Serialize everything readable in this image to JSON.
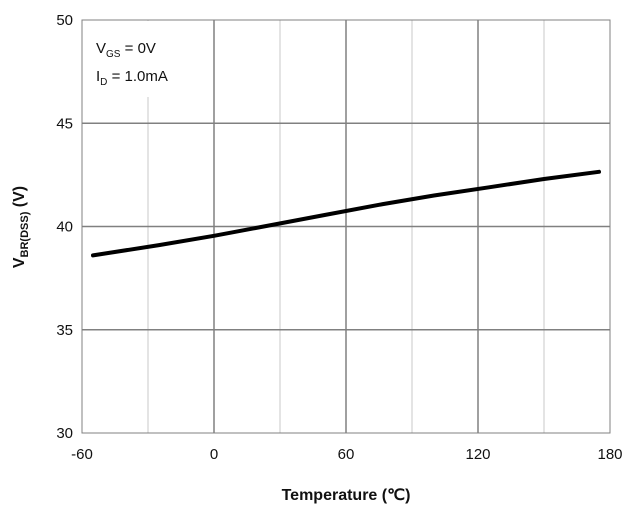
{
  "chart_data": {
    "type": "line",
    "title": "",
    "xlabel": "Temperature (℃)",
    "ylabel": {
      "main": "V",
      "sub": "BR(DSS)",
      "unit": " (V)"
    },
    "xlim": [
      -60,
      180
    ],
    "ylim": [
      30,
      50
    ],
    "x_ticks": [
      -60,
      0,
      60,
      120,
      180
    ],
    "y_ticks": [
      30,
      35,
      40,
      45,
      50
    ],
    "major_x_grid": [
      0,
      60,
      120
    ],
    "minor_x_grid": [
      -30,
      30,
      90,
      150
    ],
    "y_grid": [
      35,
      40,
      45
    ],
    "grid": true,
    "annotations": [
      {
        "main": "V",
        "sub": "GS",
        "rest": " = 0V"
      },
      {
        "main": "I",
        "sub": "D",
        "rest": " = 1.0mA"
      }
    ],
    "series": [
      {
        "name": "V(BR)DSS",
        "x": [
          -55,
          -25,
          0,
          25,
          50,
          75,
          100,
          125,
          150,
          175
        ],
        "values": [
          38.6,
          39.1,
          39.55,
          40.05,
          40.55,
          41.05,
          41.5,
          41.9,
          42.3,
          42.65
        ]
      }
    ]
  }
}
